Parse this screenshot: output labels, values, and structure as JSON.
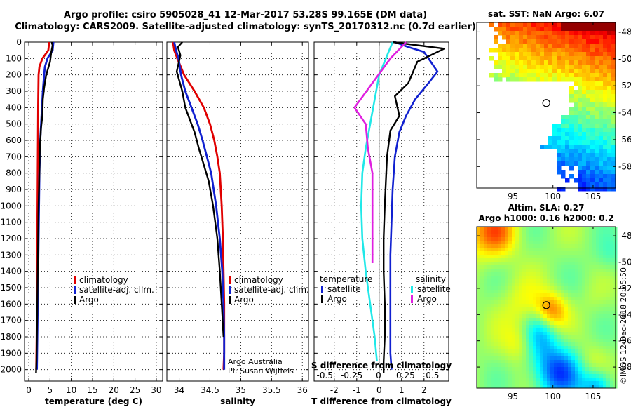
{
  "title_line1": "Argo profile: csiro 5905028_41 12-Mar-2017 53.28S 99.165E (DM data)",
  "title_line2": "Climatology: CARS2009. Satellite-adjusted climatology: synTS_20170312.nc (0.7d earlier)",
  "colors": {
    "climatology": "#e00000",
    "satellite": "#1020d0",
    "argo": "#000000",
    "cyan": "#20e8e8",
    "magenta": "#e020e0"
  },
  "chart_data": [
    {
      "id": "temperature",
      "type": "line",
      "xlabel": "temperature (deg C)",
      "ylabel": "",
      "xlim": [
        -1,
        31.5
      ],
      "ylim": [
        2070,
        0
      ],
      "xticks": [
        0,
        5,
        10,
        15,
        20,
        25,
        30
      ],
      "yticks": [
        0,
        100,
        200,
        300,
        400,
        500,
        600,
        700,
        800,
        900,
        1000,
        1100,
        1200,
        1300,
        1400,
        1500,
        1600,
        1700,
        1800,
        1900,
        2000
      ],
      "legend": [
        "climatology",
        "satellite-adj. clim.",
        "Argo"
      ],
      "series": [
        {
          "name": "climatology",
          "color": "climatology",
          "x": [
            4.8,
            4.6,
            3.2,
            2.5,
            2.3,
            2.25,
            2.2,
            2.15,
            2.1,
            2.05,
            2.0,
            1.95,
            1.9,
            1.85,
            1.8,
            1.75
          ],
          "y": [
            0,
            50,
            100,
            150,
            200,
            300,
            400,
            600,
            800,
            1000,
            1200,
            1400,
            1600,
            1800,
            1900,
            2000
          ]
        },
        {
          "name": "satellite-adj. clim.",
          "color": "satellite",
          "x": [
            5.8,
            5.6,
            4.4,
            3.8,
            3.6,
            3.3,
            3.1,
            2.9,
            2.7,
            2.5,
            2.4,
            2.3,
            2.2,
            2.1,
            2.0,
            1.9
          ],
          "y": [
            0,
            50,
            100,
            150,
            200,
            300,
            400,
            500,
            600,
            800,
            1000,
            1200,
            1400,
            1600,
            1800,
            2000
          ]
        },
        {
          "name": "Argo",
          "color": "argo",
          "x": [
            5.4,
            5.6,
            5.3,
            5.0,
            4.1,
            3.6,
            3.3,
            3.2,
            2.9,
            2.6,
            2.5,
            2.3,
            2.2,
            2.1,
            2.0,
            1.9,
            1.8,
            1.7
          ],
          "y": [
            0,
            20,
            60,
            120,
            200,
            280,
            350,
            450,
            520,
            650,
            800,
            1000,
            1200,
            1400,
            1600,
            1800,
            1950,
            2020
          ]
        }
      ]
    },
    {
      "id": "salinity",
      "type": "line",
      "xlabel": "salinity",
      "xlim": [
        33.8,
        36.1
      ],
      "ylim": [
        2070,
        0
      ],
      "xticks": [
        34,
        34.5,
        35,
        35.5,
        36
      ],
      "legend": [
        "climatology",
        "satellite-adj. clim.",
        "Argo"
      ],
      "series": [
        {
          "name": "climatology",
          "color": "climatology",
          "x": [
            33.9,
            33.92,
            33.97,
            34.08,
            34.25,
            34.4,
            34.5,
            34.57,
            34.62,
            34.66,
            34.69,
            34.71,
            34.72,
            34.73,
            34.73,
            34.73,
            34.72
          ],
          "y": [
            0,
            50,
            100,
            200,
            300,
            400,
            500,
            600,
            700,
            800,
            1000,
            1200,
            1400,
            1600,
            1800,
            1900,
            2000
          ]
        },
        {
          "name": "satellite-adj. clim.",
          "color": "satellite",
          "x": [
            33.92,
            33.95,
            33.99,
            34.03,
            34.1,
            34.2,
            34.3,
            34.38,
            34.45,
            34.52,
            34.6,
            34.66,
            34.7,
            34.72,
            34.73,
            34.73
          ],
          "y": [
            0,
            50,
            100,
            200,
            300,
            400,
            500,
            600,
            700,
            800,
            1000,
            1200,
            1400,
            1600,
            1800,
            2000
          ]
        },
        {
          "name": "Argo",
          "color": "argo",
          "x": [
            34.05,
            33.98,
            34.02,
            33.96,
            34.05,
            34.1,
            34.2,
            34.25,
            34.32,
            34.4,
            34.48,
            34.55,
            34.62,
            34.66,
            34.69,
            34.72
          ],
          "y": [
            0,
            30,
            80,
            180,
            300,
            400,
            500,
            550,
            650,
            750,
            850,
            1000,
            1200,
            1400,
            1600,
            1800
          ]
        }
      ],
      "annotation": [
        "Argo Australia",
        "PI: Susan Wijffels"
      ]
    },
    {
      "id": "differences",
      "type": "line",
      "xlabel": "T difference from climatology",
      "xlabel_top": "S difference from climatology",
      "xlim": [
        -2.9,
        3.1
      ],
      "ylim": [
        2070,
        0
      ],
      "xticks": [
        -2,
        -1,
        0,
        1,
        2
      ],
      "s_ticks": [
        -0.5,
        -0.25,
        0,
        0.25,
        0.5
      ],
      "s_tick_labels": [
        "-0.5",
        "-0.25",
        "0",
        "0.25",
        "0.5"
      ],
      "legend_temperature": [
        "temperature",
        "satellite",
        "Argo"
      ],
      "legend_salinity": [
        "salinity",
        "satellite",
        "Argo"
      ],
      "series": [
        {
          "name": "T satellite",
          "color": "satellite",
          "x": [
            0.7,
            1.3,
            2.0,
            2.6,
            2.2,
            1.6,
            1.2,
            0.9,
            0.7,
            0.6,
            0.55,
            0.5,
            0.5,
            0.5,
            0.5,
            0.55
          ],
          "y": [
            0,
            30,
            60,
            180,
            250,
            350,
            450,
            550,
            700,
            900,
            1100,
            1300,
            1500,
            1700,
            1900,
            2000
          ]
        },
        {
          "name": "T Argo",
          "color": "argo",
          "x": [
            0.6,
            2.9,
            1.7,
            1.3,
            0.7,
            0.9,
            0.5,
            0.35,
            0.3,
            0.25,
            0.2,
            0.2,
            0.25,
            0.25,
            0.2,
            0.2
          ],
          "y": [
            0,
            40,
            120,
            250,
            330,
            450,
            540,
            700,
            850,
            1000,
            1200,
            1400,
            1600,
            1800,
            1950,
            2020
          ]
        },
        {
          "name": "S satellite",
          "color": "cyan",
          "x": [
            0.6,
            0.3,
            0.0,
            -0.2,
            -0.4,
            -0.6,
            -0.75,
            -0.8,
            -0.75,
            -0.6,
            -0.4,
            -0.2,
            -0.1
          ],
          "y": [
            0,
            100,
            200,
            350,
            500,
            650,
            800,
            1000,
            1200,
            1400,
            1600,
            1800,
            1950
          ]
        },
        {
          "name": "S Argo",
          "color": "magenta",
          "x": [
            1.2,
            0.5,
            -0.3,
            -1.1,
            -0.6,
            -0.5,
            -0.3,
            -0.3,
            -0.3,
            -0.3
          ],
          "y": [
            0,
            100,
            250,
            400,
            500,
            650,
            800,
            1000,
            1200,
            1350
          ]
        }
      ]
    },
    {
      "id": "sst_map",
      "type": "heatmap",
      "title": "sat. SST: NaN Argo: 6.07",
      "xticks": [
        95,
        100,
        105
      ],
      "yticks": [
        -48,
        -50,
        -52,
        -54,
        -56,
        -58
      ],
      "marker": {
        "lon": 99.165,
        "lat": -53.28
      }
    },
    {
      "id": "sla_map",
      "type": "heatmap",
      "title": "Altim. SLA: 0.27",
      "subtitle": "Argo h1000: 0.16 h2000: 0.2",
      "xticks": [
        95,
        100,
        105
      ],
      "yticks": [
        -48,
        -50,
        -52,
        -54,
        -56,
        -58
      ],
      "marker": {
        "lon": 99.165,
        "lat": -53.28
      },
      "stamp": "©IMOS 12-Dec-2018 20:05:50"
    }
  ]
}
